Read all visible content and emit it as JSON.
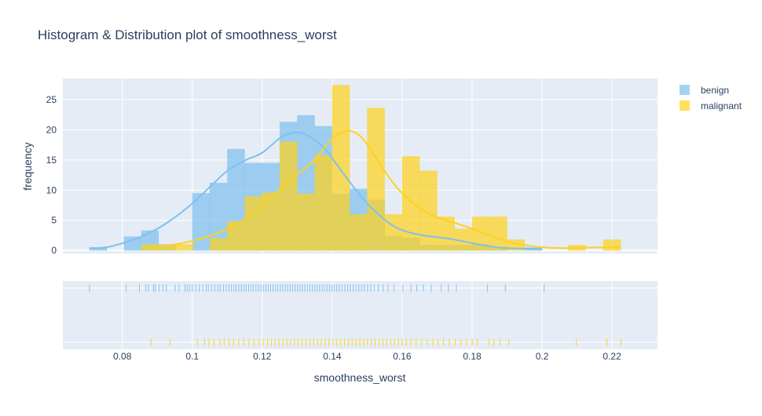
{
  "chart_data": {
    "type": "bar",
    "title": "Histogram & Distribution plot of smoothness_worst",
    "xlabel": "smoothness_worst",
    "ylabel": "frequency",
    "xlim": [
      0.063,
      0.233
    ],
    "ylim": [
      -0.5,
      28.5
    ],
    "x_ticks": [
      0.08,
      0.1,
      0.12,
      0.14,
      0.16,
      0.18,
      0.2,
      0.22
    ],
    "x_tick_labels": [
      "0.08",
      "0.1",
      "0.12",
      "0.14",
      "0.16",
      "0.18",
      "0.2",
      "0.22"
    ],
    "y_ticks": [
      0,
      5,
      10,
      15,
      20,
      25
    ],
    "y_tick_labels": [
      "0",
      "5",
      "10",
      "15",
      "20",
      "25"
    ],
    "grid": true,
    "legend_position": "top-right",
    "bin_width": 0.00495,
    "series": [
      {
        "name": "benign",
        "color": "#7ec1ee",
        "bins": [
          [
            0.0706,
            0.0756,
            0.5
          ],
          [
            0.0805,
            0.0855,
            2.3
          ],
          [
            0.0855,
            0.0904,
            3.3
          ],
          [
            0.0904,
            0.0954,
            1.0
          ],
          [
            0.1,
            0.105,
            9.5
          ],
          [
            0.105,
            0.11,
            11.2
          ],
          [
            0.11,
            0.115,
            16.8
          ],
          [
            0.115,
            0.12,
            14.5
          ],
          [
            0.12,
            0.125,
            14.5
          ],
          [
            0.125,
            0.13,
            21.3
          ],
          [
            0.13,
            0.135,
            22.4
          ],
          [
            0.135,
            0.14,
            20.6
          ],
          [
            0.14,
            0.145,
            9.4
          ],
          [
            0.145,
            0.15,
            10.2
          ],
          [
            0.15,
            0.155,
            8.4
          ],
          [
            0.155,
            0.16,
            2.4
          ],
          [
            0.16,
            0.165,
            2.1
          ],
          [
            0.165,
            0.17,
            0.9
          ],
          [
            0.17,
            0.175,
            0.9
          ],
          [
            0.175,
            0.18,
            0.9
          ],
          [
            0.18,
            0.185,
            1.1
          ],
          [
            0.185,
            0.19,
            0.6
          ],
          [
            0.195,
            0.2,
            0.5
          ]
        ],
        "curve": [
          [
            0.0706,
            0.4
          ],
          [
            0.075,
            0.5
          ],
          [
            0.08,
            1.2
          ],
          [
            0.085,
            2.2
          ],
          [
            0.09,
            3.6
          ],
          [
            0.095,
            5.5
          ],
          [
            0.1,
            7.8
          ],
          [
            0.105,
            10.5
          ],
          [
            0.11,
            13.2
          ],
          [
            0.115,
            14.9
          ],
          [
            0.12,
            16.2
          ],
          [
            0.125,
            18.6
          ],
          [
            0.128,
            19.4
          ],
          [
            0.131,
            19.5
          ],
          [
            0.134,
            18.7
          ],
          [
            0.138,
            16.8
          ],
          [
            0.142,
            13.7
          ],
          [
            0.146,
            10.6
          ],
          [
            0.15,
            7.8
          ],
          [
            0.154,
            5.6
          ],
          [
            0.158,
            3.9
          ],
          [
            0.162,
            3.0
          ],
          [
            0.166,
            2.5
          ],
          [
            0.17,
            2.2
          ],
          [
            0.175,
            1.8
          ],
          [
            0.18,
            1.2
          ],
          [
            0.185,
            0.7
          ],
          [
            0.19,
            0.4
          ],
          [
            0.2,
            0.25
          ]
        ],
        "rug": [
          0.0706,
          0.0811,
          0.0849,
          0.0867,
          0.0875,
          0.0889,
          0.0894,
          0.0905,
          0.0916,
          0.0926,
          0.0951,
          0.0962,
          0.0979,
          0.0985,
          0.0992,
          0.1,
          0.101,
          0.102,
          0.103,
          0.104,
          0.1046,
          0.1055,
          0.1064,
          0.1073,
          0.108,
          0.1089,
          0.1097,
          0.1105,
          0.1112,
          0.1119,
          0.1126,
          0.1133,
          0.114,
          0.1147,
          0.1154,
          0.1161,
          0.1168,
          0.1175,
          0.1182,
          0.1189,
          0.1196,
          0.1203,
          0.121,
          0.1217,
          0.1224,
          0.1231,
          0.1238,
          0.1245,
          0.1252,
          0.1259,
          0.1266,
          0.1273,
          0.128,
          0.1287,
          0.1294,
          0.1301,
          0.1308,
          0.1315,
          0.1322,
          0.1329,
          0.1336,
          0.1343,
          0.135,
          0.1357,
          0.1364,
          0.1371,
          0.1378,
          0.1385,
          0.1392,
          0.1399,
          0.1406,
          0.1413,
          0.142,
          0.1428,
          0.1436,
          0.1444,
          0.1452,
          0.146,
          0.1468,
          0.1476,
          0.1484,
          0.1492,
          0.1501,
          0.151,
          0.152,
          0.1532,
          0.1546,
          0.156,
          0.1577,
          0.1602,
          0.1625,
          0.1642,
          0.1661,
          0.1683,
          0.1712,
          0.1732,
          0.1755,
          0.1844,
          0.1895,
          0.2006
        ]
      },
      {
        "name": "malignant",
        "color": "#ffd21a",
        "bins": [
          [
            0.0855,
            0.0904,
            1.0
          ],
          [
            0.0904,
            0.0954,
            0.8
          ],
          [
            0.0954,
            0.1004,
            1.0
          ],
          [
            0.105,
            0.11,
            2.0
          ],
          [
            0.11,
            0.115,
            4.8
          ],
          [
            0.115,
            0.12,
            9.0
          ],
          [
            0.12,
            0.125,
            9.6
          ],
          [
            0.125,
            0.13,
            18.0
          ],
          [
            0.13,
            0.135,
            9.4
          ],
          [
            0.135,
            0.14,
            15.8
          ],
          [
            0.14,
            0.145,
            27.4
          ],
          [
            0.145,
            0.15,
            6.0
          ],
          [
            0.15,
            0.155,
            23.6
          ],
          [
            0.155,
            0.16,
            6.0
          ],
          [
            0.16,
            0.165,
            15.6
          ],
          [
            0.165,
            0.17,
            13.2
          ],
          [
            0.17,
            0.175,
            5.6
          ],
          [
            0.175,
            0.18,
            3.6
          ],
          [
            0.18,
            0.185,
            5.6
          ],
          [
            0.185,
            0.19,
            5.6
          ],
          [
            0.19,
            0.195,
            1.8
          ],
          [
            0.2075,
            0.2125,
            0.9
          ],
          [
            0.2175,
            0.2225,
            1.8
          ]
        ],
        "curve": [
          [
            0.0885,
            0.6
          ],
          [
            0.095,
            1.0
          ],
          [
            0.1,
            1.6
          ],
          [
            0.105,
            2.4
          ],
          [
            0.11,
            3.6
          ],
          [
            0.115,
            5.2
          ],
          [
            0.12,
            7.5
          ],
          [
            0.125,
            10.1
          ],
          [
            0.13,
            12.6
          ],
          [
            0.135,
            15.0
          ],
          [
            0.14,
            18.5
          ],
          [
            0.144,
            19.8
          ],
          [
            0.147,
            19.4
          ],
          [
            0.15,
            17.6
          ],
          [
            0.154,
            14.0
          ],
          [
            0.158,
            10.8
          ],
          [
            0.162,
            8.4
          ],
          [
            0.166,
            6.6
          ],
          [
            0.17,
            5.5
          ],
          [
            0.175,
            4.6
          ],
          [
            0.18,
            3.6
          ],
          [
            0.185,
            2.5
          ],
          [
            0.19,
            1.5
          ],
          [
            0.195,
            0.9
          ],
          [
            0.2,
            0.55
          ],
          [
            0.205,
            0.4
          ],
          [
            0.21,
            0.42
          ],
          [
            0.215,
            0.5
          ],
          [
            0.2225,
            0.5
          ]
        ],
        "rug": [
          0.0882,
          0.0936,
          0.1015,
          0.1035,
          0.1048,
          0.1062,
          0.1079,
          0.1091,
          0.1105,
          0.1118,
          0.1133,
          0.1147,
          0.1162,
          0.1176,
          0.119,
          0.1203,
          0.1215,
          0.1226,
          0.1237,
          0.1248,
          0.1259,
          0.127,
          0.1281,
          0.1292,
          0.1303,
          0.1314,
          0.1325,
          0.1336,
          0.1347,
          0.1358,
          0.1369,
          0.138,
          0.1391,
          0.1402,
          0.1413,
          0.1424,
          0.1435,
          0.1446,
          0.1457,
          0.1468,
          0.1479,
          0.149,
          0.1501,
          0.1512,
          0.1523,
          0.1534,
          0.1545,
          0.1556,
          0.1567,
          0.1578,
          0.1589,
          0.16,
          0.1612,
          0.1625,
          0.164,
          0.1656,
          0.1672,
          0.1688,
          0.1703,
          0.1718,
          0.1735,
          0.1752,
          0.1768,
          0.1784,
          0.18,
          0.1815,
          0.1848,
          0.1862,
          0.188,
          0.1905,
          0.2098,
          0.2185,
          0.2226
        ]
      }
    ]
  }
}
